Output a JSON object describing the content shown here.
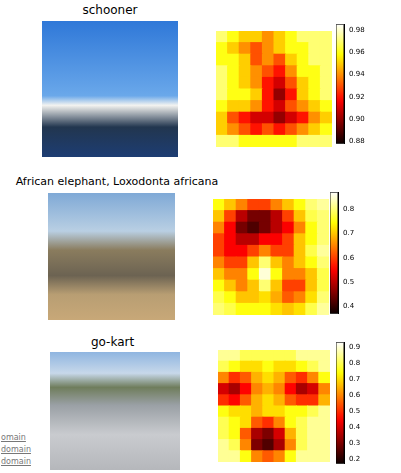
{
  "chart_data": [
    {
      "type": "heatmap",
      "title": "schooner",
      "tick_labels": false,
      "cells": [
        [
          0.97,
          0.96,
          0.95,
          0.95,
          0.94,
          0.95,
          0.96,
          0.97,
          0.97,
          0.97
        ],
        [
          0.96,
          0.95,
          0.94,
          0.93,
          0.94,
          0.95,
          0.96,
          0.96,
          0.97,
          0.97
        ],
        [
          0.96,
          0.96,
          0.95,
          0.93,
          0.94,
          0.93,
          0.95,
          0.96,
          0.97,
          0.97
        ],
        [
          0.97,
          0.96,
          0.95,
          0.94,
          0.93,
          0.92,
          0.94,
          0.96,
          0.96,
          0.97
        ],
        [
          0.97,
          0.96,
          0.95,
          0.94,
          0.92,
          0.91,
          0.93,
          0.95,
          0.96,
          0.97
        ],
        [
          0.97,
          0.96,
          0.96,
          0.95,
          0.92,
          0.9,
          0.92,
          0.95,
          0.96,
          0.97
        ],
        [
          0.96,
          0.95,
          0.95,
          0.94,
          0.92,
          0.91,
          0.93,
          0.94,
          0.95,
          0.96
        ],
        [
          0.95,
          0.93,
          0.92,
          0.91,
          0.91,
          0.9,
          0.91,
          0.92,
          0.94,
          0.95
        ],
        [
          0.95,
          0.94,
          0.93,
          0.92,
          0.93,
          0.92,
          0.93,
          0.94,
          0.95,
          0.96
        ],
        [
          0.97,
          0.97,
          0.96,
          0.96,
          0.96,
          0.96,
          0.96,
          0.97,
          0.97,
          0.97
        ]
      ],
      "colorbar": {
        "range": [
          0.878,
          0.985
        ],
        "ticks": [
          0.88,
          {
            "value": 0.9,
            "label": "0.90"
          },
          0.92,
          0.94,
          0.96,
          0.98
        ]
      }
    },
    {
      "type": "heatmap",
      "title": "African elephant, Loxodonta africana",
      "tick_labels": false,
      "cells": [
        [
          0.75,
          0.7,
          0.65,
          0.6,
          0.6,
          0.65,
          0.7,
          0.75,
          0.8,
          0.82
        ],
        [
          0.7,
          0.6,
          0.5,
          0.45,
          0.45,
          0.5,
          0.6,
          0.7,
          0.78,
          0.8
        ],
        [
          0.65,
          0.55,
          0.45,
          0.42,
          0.45,
          0.5,
          0.55,
          0.65,
          0.75,
          0.8
        ],
        [
          0.6,
          0.55,
          0.5,
          0.5,
          0.55,
          0.55,
          0.6,
          0.7,
          0.75,
          0.8
        ],
        [
          0.6,
          0.55,
          0.55,
          0.6,
          0.65,
          0.6,
          0.6,
          0.7,
          0.78,
          0.82
        ],
        [
          0.65,
          0.6,
          0.6,
          0.7,
          0.8,
          0.7,
          0.65,
          0.7,
          0.75,
          0.8
        ],
        [
          0.7,
          0.65,
          0.65,
          0.75,
          0.85,
          0.75,
          0.65,
          0.65,
          0.7,
          0.78
        ],
        [
          0.75,
          0.7,
          0.65,
          0.7,
          0.8,
          0.7,
          0.6,
          0.6,
          0.7,
          0.78
        ],
        [
          0.78,
          0.75,
          0.7,
          0.7,
          0.72,
          0.68,
          0.62,
          0.65,
          0.72,
          0.8
        ],
        [
          0.8,
          0.78,
          0.75,
          0.75,
          0.75,
          0.72,
          0.7,
          0.72,
          0.78,
          0.82
        ]
      ],
      "colorbar": {
        "range": [
          0.37,
          0.87
        ],
        "ticks": [
          0.4,
          0.5,
          0.6,
          0.7,
          0.8
        ]
      }
    },
    {
      "type": "heatmap",
      "title": "go-kart",
      "tick_labels": false,
      "cells": [
        [
          0.85,
          0.85,
          0.8,
          0.8,
          0.8,
          0.8,
          0.8,
          0.85,
          0.85,
          0.85
        ],
        [
          0.8,
          0.75,
          0.7,
          0.7,
          0.75,
          0.7,
          0.7,
          0.75,
          0.8,
          0.85
        ],
        [
          0.6,
          0.5,
          0.55,
          0.65,
          0.7,
          0.65,
          0.55,
          0.5,
          0.6,
          0.75
        ],
        [
          0.4,
          0.35,
          0.45,
          0.6,
          0.65,
          0.6,
          0.45,
          0.35,
          0.4,
          0.6
        ],
        [
          0.5,
          0.45,
          0.55,
          0.65,
          0.7,
          0.65,
          0.55,
          0.5,
          0.5,
          0.65
        ],
        [
          0.75,
          0.7,
          0.7,
          0.65,
          0.7,
          0.7,
          0.75,
          0.75,
          0.8,
          0.85
        ],
        [
          0.8,
          0.75,
          0.7,
          0.55,
          0.5,
          0.6,
          0.75,
          0.8,
          0.85,
          0.85
        ],
        [
          0.8,
          0.75,
          0.55,
          0.35,
          0.3,
          0.4,
          0.65,
          0.8,
          0.85,
          0.85
        ],
        [
          0.85,
          0.8,
          0.6,
          0.3,
          0.25,
          0.35,
          0.6,
          0.8,
          0.85,
          0.85
        ],
        [
          0.85,
          0.85,
          0.75,
          0.6,
          0.55,
          0.6,
          0.75,
          0.85,
          0.85,
          0.85
        ]
      ],
      "colorbar": {
        "range": [
          0.17,
          0.93
        ],
        "ticks": [
          0.2,
          0.3,
          0.4,
          0.5,
          0.6,
          0.7,
          0.8,
          0.9
        ]
      }
    }
  ],
  "footer_texts": [
    "omain",
    "domain",
    "domain"
  ]
}
